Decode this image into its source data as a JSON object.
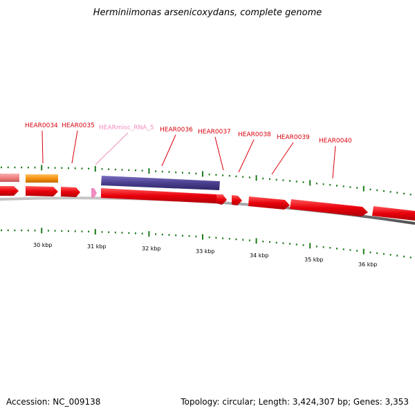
{
  "title": "Herminiimonas arsenicoxydans, complete genome",
  "footer": {
    "accession": "Accession: NC_009138",
    "summary": "Topology: circular; Length: 3,424,307 bp; Genes: 3,353"
  },
  "colors": {
    "cds": "#e8000b",
    "cds_light": "#f08080",
    "orange": "#f5920f",
    "purple": "#4a3f8f",
    "misc_rna": "#f08cc0",
    "ticks": "#1a7a1a",
    "label": "#d8000c",
    "backbone": "#808080"
  },
  "scale": {
    "labels": [
      "30 kbp",
      "31 kbp",
      "32 kbp",
      "33 kbp",
      "34 kbp",
      "35 kbp",
      "36 kbp"
    ]
  },
  "features": [
    {
      "name": "HEAR0034"
    },
    {
      "name": "HEAR0035"
    },
    {
      "name": "HEARmisc_RNA_5"
    },
    {
      "name": "HEAR0036"
    },
    {
      "name": "HEAR0037"
    },
    {
      "name": "HEAR0038"
    },
    {
      "name": "HEAR0039"
    },
    {
      "name": "HEAR0040"
    }
  ]
}
